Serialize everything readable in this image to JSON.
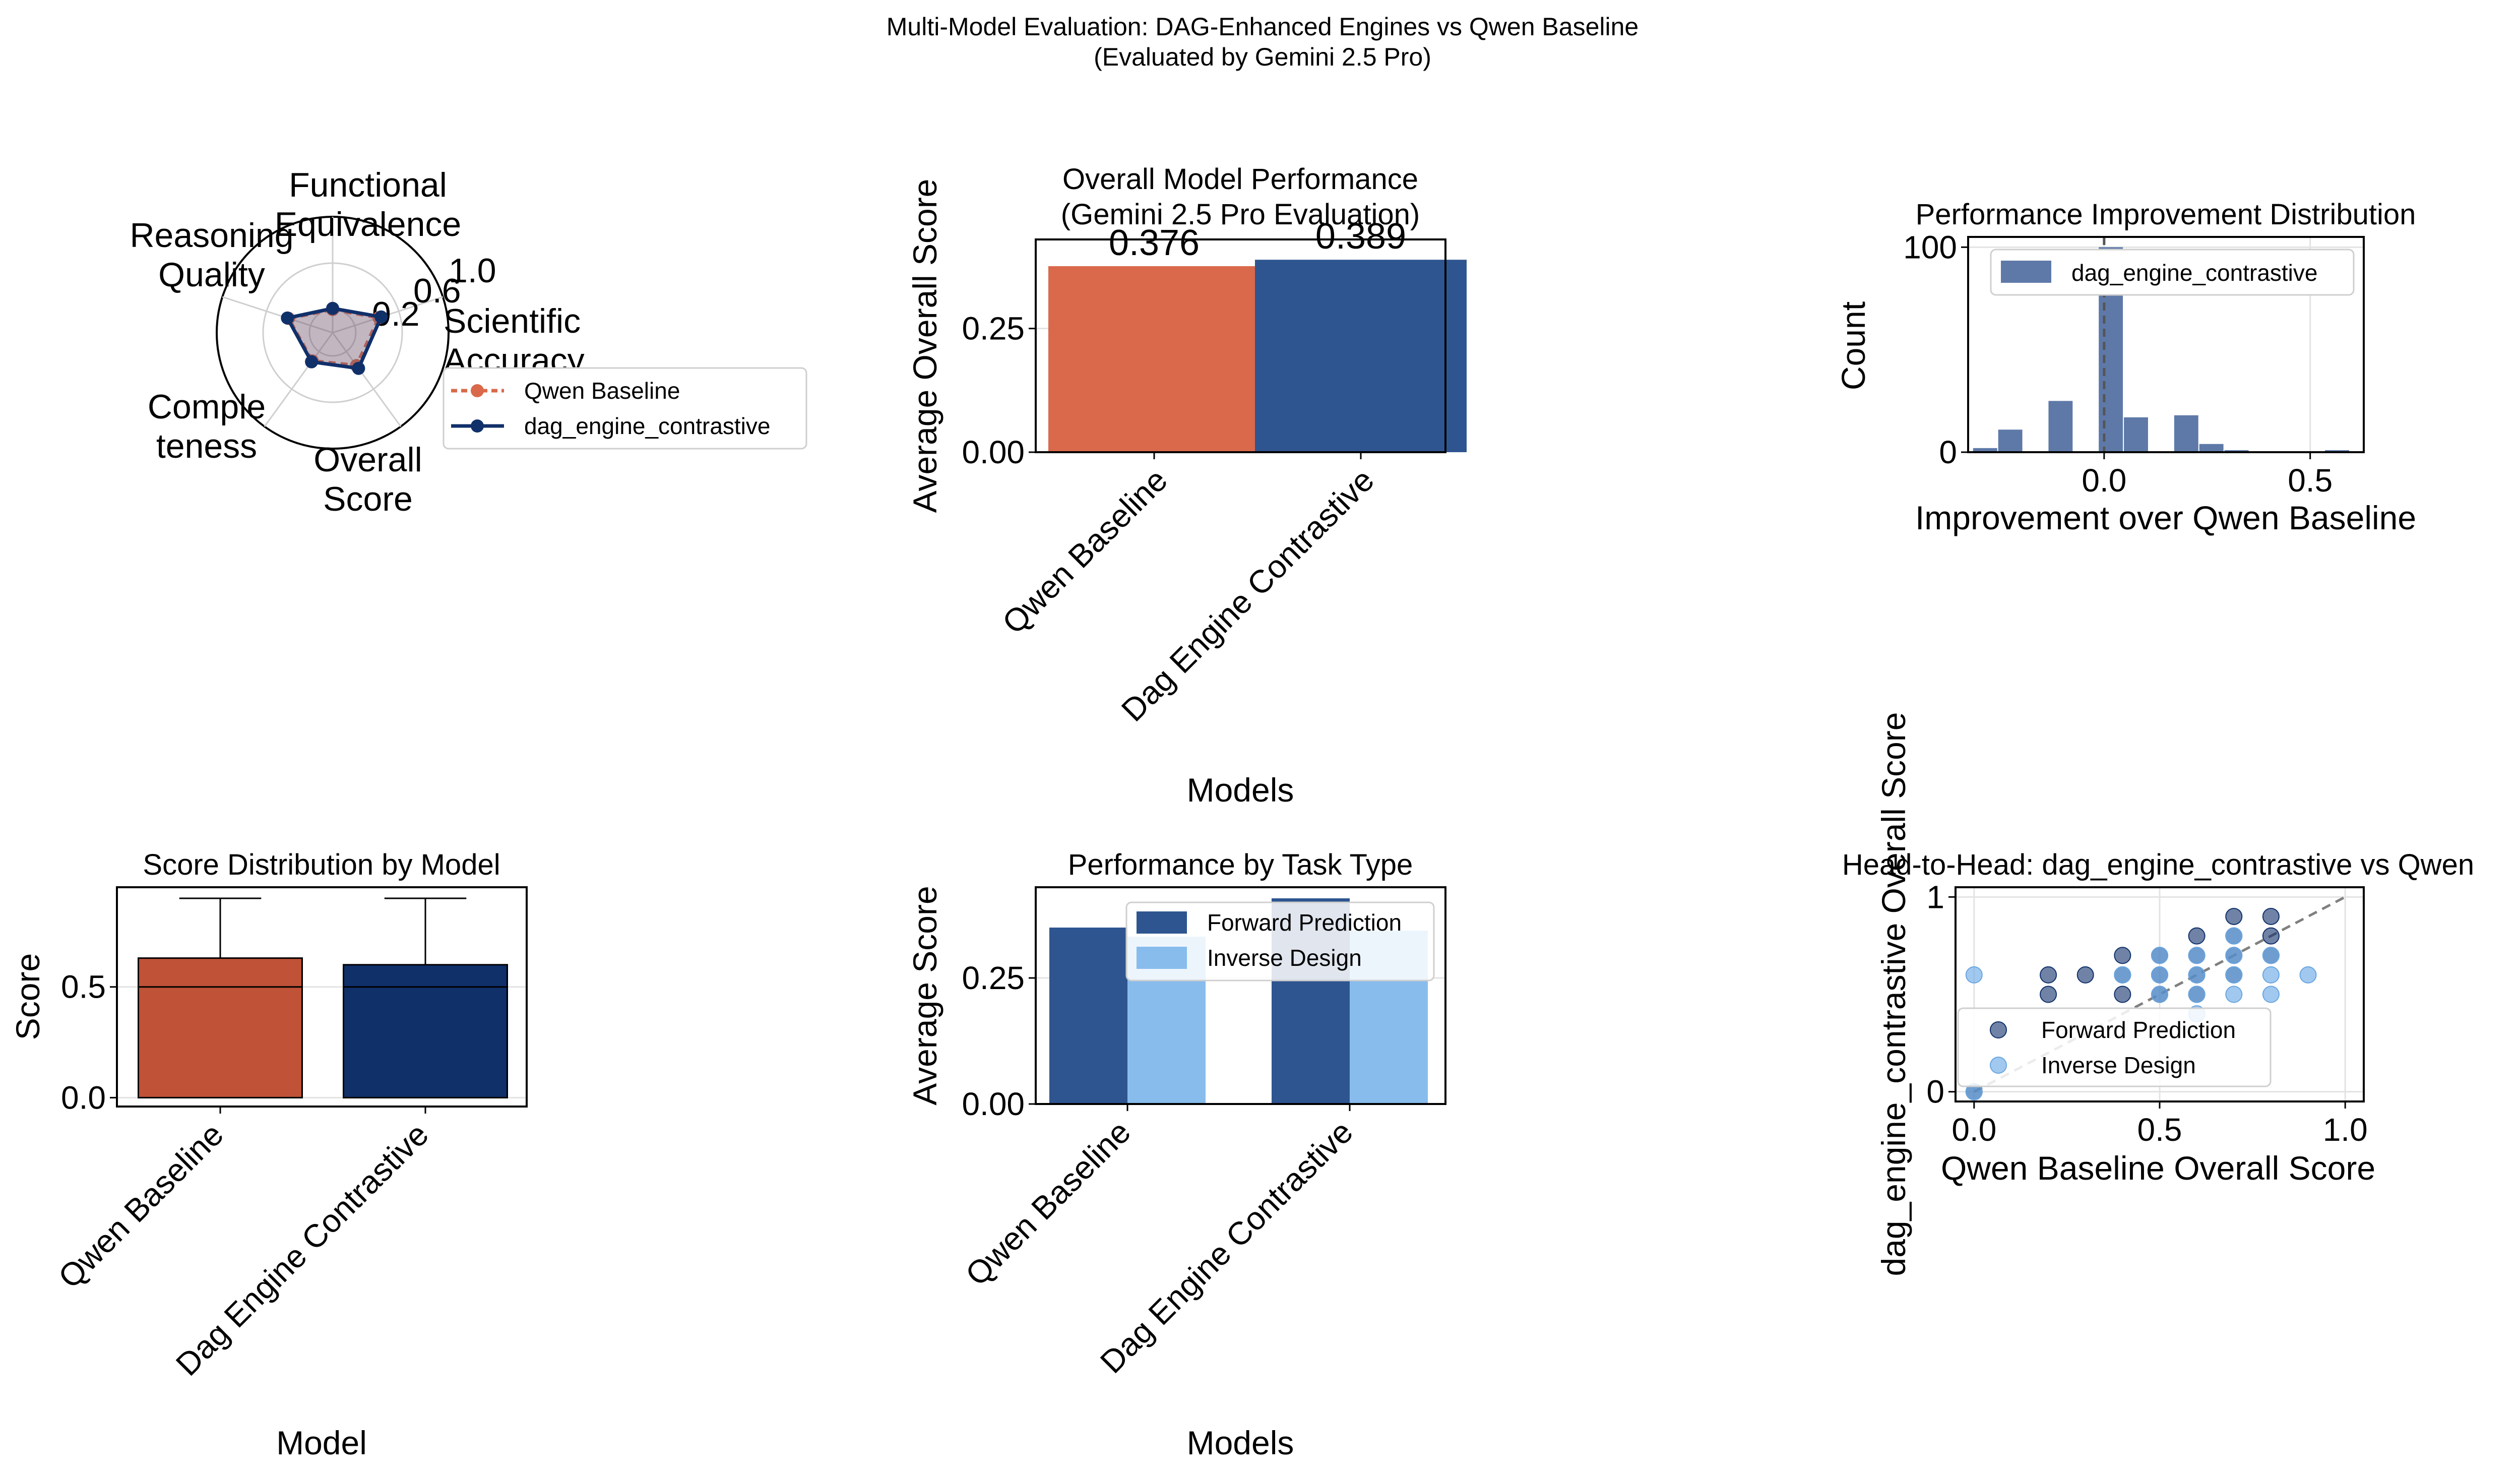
{
  "figure": {
    "title_line1": "Multi-Model Evaluation: DAG-Enhanced Engines vs Qwen Baseline",
    "title_line2": "(Evaluated by Gemini 2.5 Pro)"
  },
  "colors": {
    "qwen": "#D9694A",
    "qwen_dark": "#BF5237",
    "dag": "#2E5590",
    "dag_dark": "#10306A",
    "hist": "#5E79A8",
    "forward": "#2E5590",
    "inverse": "#88BCEC"
  },
  "chart_data": [
    {
      "id": "radar",
      "type": "radar",
      "title": "",
      "axes": [
        "Functional Equivalence",
        "Scientific Accuracy",
        "Overall Score",
        "Completeness",
        "Reasoning Quality"
      ],
      "axis_labels_display": [
        [
          "Functional",
          "Equivalence"
        ],
        [
          "Scientific",
          "Accuracy"
        ],
        [
          "Overall",
          "Score"
        ],
        [
          "Comple",
          "teness"
        ],
        [
          "Reasoning",
          "Quality"
        ]
      ],
      "r_ticks": [
        "0.2",
        "0.6",
        "1.0"
      ],
      "rlim": [
        0,
        1
      ],
      "series": [
        {
          "name": "Qwen Baseline",
          "values": [
            0.2,
            0.42,
            0.35,
            0.3,
            0.4
          ]
        },
        {
          "name": "dag_engine_contrastive",
          "values": [
            0.21,
            0.44,
            0.38,
            0.31,
            0.41
          ]
        }
      ],
      "legend": "right"
    },
    {
      "id": "overall",
      "type": "bar",
      "title_line1": "Overall Model Performance",
      "title_line2": "(Gemini 2.5 Pro Evaluation)",
      "categories": [
        "Qwen Baseline",
        "Dag Engine Contrastive"
      ],
      "values": [
        0.376,
        0.389
      ],
      "data_labels": [
        "0.376",
        "0.389"
      ],
      "xlabel": "Models",
      "ylabel": "Average Overall Score",
      "ylim": [
        0,
        0.43
      ],
      "yticks": [
        0.0,
        0.25
      ],
      "ytick_labels": [
        "0.00",
        "0.25"
      ]
    },
    {
      "id": "improvement",
      "type": "bar",
      "title": "Performance Improvement Distribution",
      "xlabel": "Improvement over Qwen Baseline",
      "ylabel": "Count",
      "xlim": [
        -0.33,
        0.63
      ],
      "ylim": [
        0,
        105
      ],
      "xticks": [
        0.0,
        0.5
      ],
      "xtick_labels": [
        "0.0",
        "0.5"
      ],
      "yticks": [
        0,
        100
      ],
      "ytick_labels": [
        "0",
        "100"
      ],
      "bin_width": 0.061,
      "bins_start": [
        -0.318,
        -0.257,
        -0.196,
        -0.135,
        -0.074,
        -0.013,
        0.048,
        0.109,
        0.17,
        0.231,
        0.292,
        0.353,
        0.414,
        0.475,
        0.536
      ],
      "counts": [
        2,
        11,
        0,
        25,
        0,
        100,
        17,
        0,
        18,
        4,
        1,
        0,
        0,
        0,
        1
      ],
      "reference_line_x": 0,
      "legend_entries": [
        "dag_engine_contrastive"
      ],
      "legend": "top-right"
    },
    {
      "id": "distribution",
      "type": "box",
      "title": "Score Distribution by Model",
      "categories": [
        "Qwen Baseline",
        "Dag Engine Contrastive"
      ],
      "xlabel": "Model",
      "ylabel": "Score",
      "ylim": [
        -0.04,
        0.95
      ],
      "yticks": [
        0.0,
        0.5
      ],
      "ytick_labels": [
        "0.0",
        "0.5"
      ],
      "boxes": [
        {
          "name": "Qwen Baseline",
          "q1": 0.0,
          "median": 0.5,
          "q3": 0.63,
          "whisker_low": 0.0,
          "whisker_high": 0.9
        },
        {
          "name": "Dag Engine Contrastive",
          "q1": 0.0,
          "median": 0.5,
          "q3": 0.6,
          "whisker_low": 0.0,
          "whisker_high": 0.9
        }
      ]
    },
    {
      "id": "task_type",
      "type": "bar",
      "title": "Performance by Task Type",
      "categories": [
        "Qwen Baseline",
        "Dag Engine Contrastive"
      ],
      "series": [
        {
          "name": "Forward Prediction",
          "values": [
            0.35,
            0.408
          ]
        },
        {
          "name": "Inverse Design",
          "values": [
            0.332,
            0.344
          ]
        }
      ],
      "xlabel": "Models",
      "ylabel": "Average Score",
      "ylim": [
        0,
        0.43
      ],
      "yticks": [
        0.0,
        0.25
      ],
      "ytick_labels": [
        "0.00",
        "0.25"
      ],
      "legend": "top-right"
    },
    {
      "id": "head_to_head",
      "type": "scatter",
      "title": "Head-to-Head: dag_engine_contrastive vs Qwen",
      "xlabel": "Qwen Baseline Overall Score",
      "ylabel": "dag_engine_contrastive Overall Score",
      "xlim": [
        -0.05,
        1.05
      ],
      "ylim": [
        -0.05,
        1.05
      ],
      "xticks": [
        0.0,
        0.5,
        1.0
      ],
      "xtick_labels": [
        "0.0",
        "0.5",
        "1.0"
      ],
      "yticks": [
        0,
        1
      ],
      "ytick_labels": [
        "0",
        "1"
      ],
      "diagonal": [
        [
          0,
          0
        ],
        [
          1,
          1
        ]
      ],
      "series": [
        {
          "name": "Forward Prediction",
          "points": [
            [
              0.0,
              0.0
            ],
            [
              0.2,
              0.5
            ],
            [
              0.2,
              0.6
            ],
            [
              0.3,
              0.6
            ],
            [
              0.4,
              0.5
            ],
            [
              0.4,
              0.6
            ],
            [
              0.4,
              0.7
            ],
            [
              0.5,
              0.5
            ],
            [
              0.5,
              0.6
            ],
            [
              0.5,
              0.7
            ],
            [
              0.6,
              0.5
            ],
            [
              0.6,
              0.6
            ],
            [
              0.6,
              0.7
            ],
            [
              0.6,
              0.8
            ],
            [
              0.7,
              0.6
            ],
            [
              0.7,
              0.7
            ],
            [
              0.7,
              0.8
            ],
            [
              0.7,
              0.9
            ],
            [
              0.8,
              0.7
            ],
            [
              0.8,
              0.8
            ],
            [
              0.8,
              0.9
            ]
          ]
        },
        {
          "name": "Inverse Design",
          "points": [
            [
              0.0,
              0.6
            ],
            [
              0.0,
              0.0
            ],
            [
              0.4,
              0.6
            ],
            [
              0.5,
              0.5
            ],
            [
              0.5,
              0.6
            ],
            [
              0.5,
              0.7
            ],
            [
              0.6,
              0.4
            ],
            [
              0.6,
              0.5
            ],
            [
              0.6,
              0.6
            ],
            [
              0.6,
              0.7
            ],
            [
              0.7,
              0.5
            ],
            [
              0.7,
              0.6
            ],
            [
              0.7,
              0.7
            ],
            [
              0.7,
              0.8
            ],
            [
              0.8,
              0.5
            ],
            [
              0.8,
              0.6
            ],
            [
              0.8,
              0.7
            ],
            [
              0.9,
              0.6
            ]
          ]
        }
      ],
      "legend": "lower-right"
    }
  ]
}
